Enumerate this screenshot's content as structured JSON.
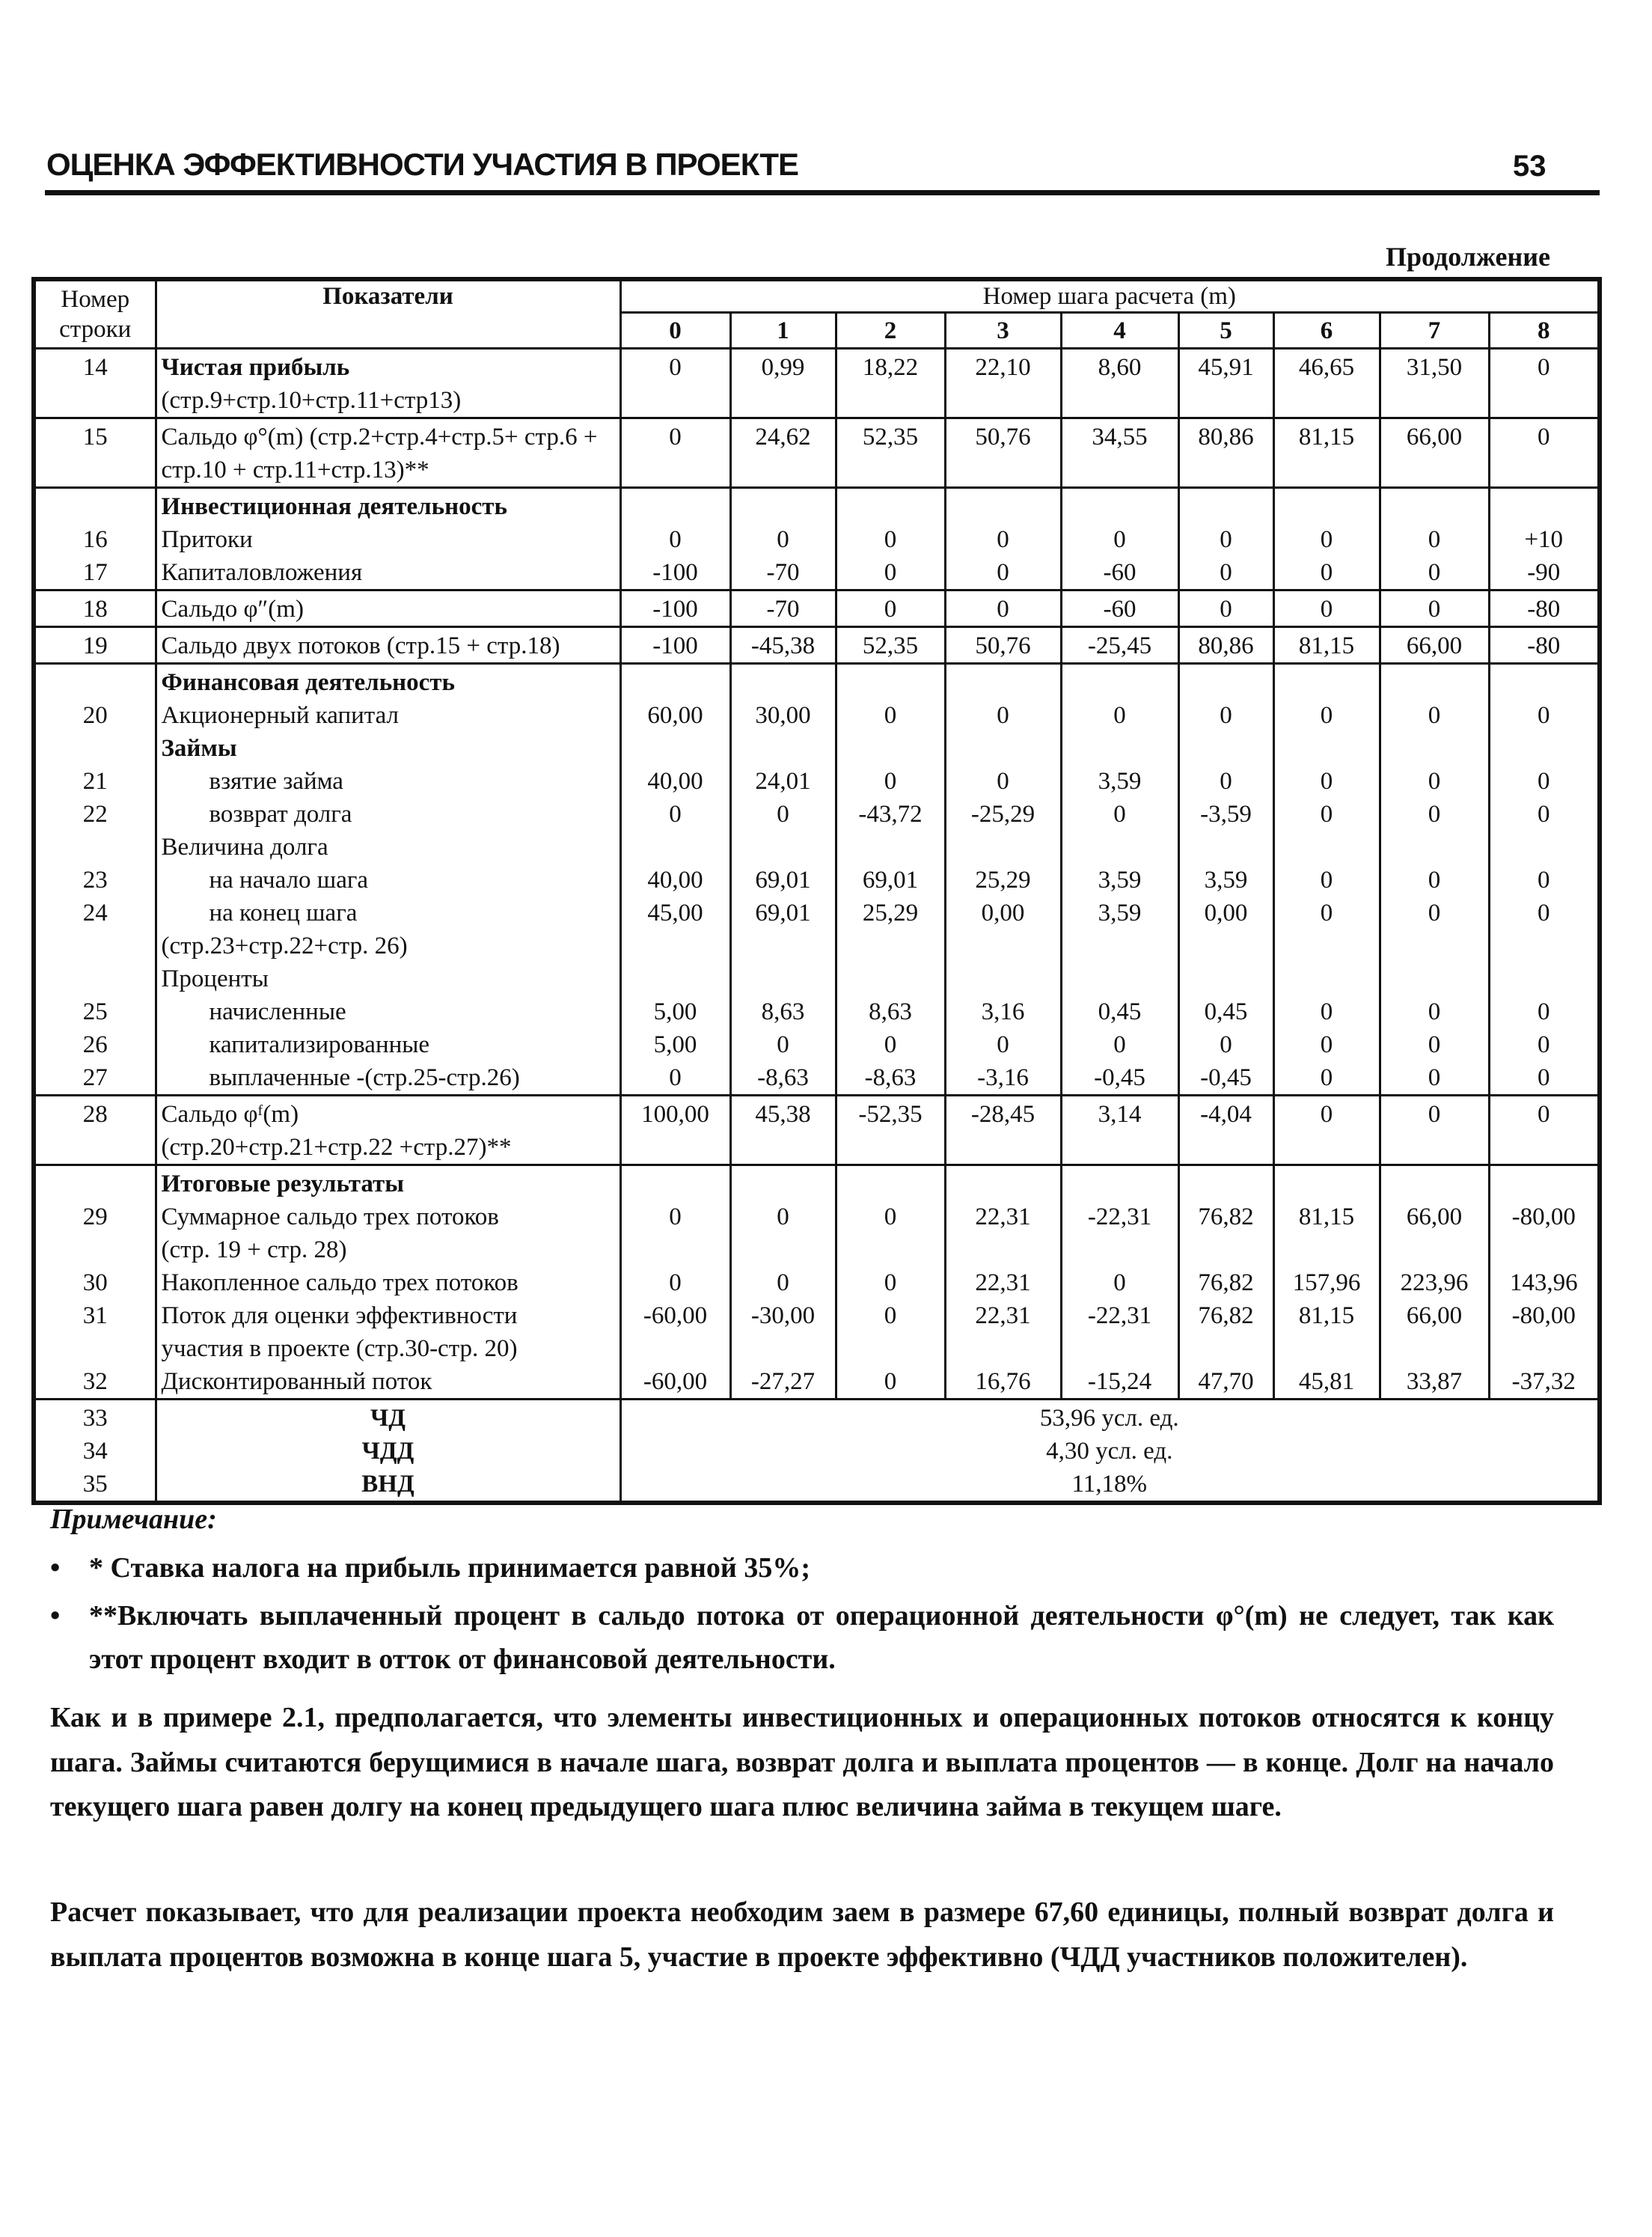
{
  "header": {
    "title": "ОЦЕНКА ЭФФЕКТИВНОСТИ УЧАСТИЯ В ПРОЕКТЕ",
    "page": "53"
  },
  "continuation": "Продолжение",
  "table": {
    "col_row": "Номер строки",
    "col_row_lines": [
      "Номер",
      "строки"
    ],
    "col_indicator": "Показатели",
    "col_steps": "Номер шага расчета (m)",
    "steps": [
      "0",
      "1",
      "2",
      "3",
      "4",
      "5",
      "6",
      "7",
      "8"
    ],
    "blocks": [
      {
        "lines": [
          {
            "num": "14",
            "label": "Чистая прибыль",
            "bold": true,
            "values": [
              "0",
              "0,99",
              "18,22",
              "22,10",
              "8,60",
              "45,91",
              "46,65",
              "31,50",
              "0"
            ]
          },
          {
            "label": "(стр.9+стр.10+стр.11+стр13)"
          }
        ]
      },
      {
        "lines": [
          {
            "num": "15",
            "label": "Сальдо φ°(m) (стр.2+стр.4+стр.5+ стр.6 +",
            "values": [
              "0",
              "24,62",
              "52,35",
              "50,76",
              "34,55",
              "80,86",
              "81,15",
              "66,00",
              "0"
            ]
          },
          {
            "label": "стр.10 + стр.11+стр.13)**"
          }
        ]
      },
      {
        "lines": [
          {
            "label": "Инвестиционная деятельность",
            "bold": true
          },
          {
            "num": "16",
            "label": "Притоки",
            "values": [
              "0",
              "0",
              "0",
              "0",
              "0",
              "0",
              "0",
              "0",
              "+10"
            ]
          },
          {
            "num": "17",
            "label": "Капиталовложения",
            "values": [
              "-100",
              "-70",
              "0",
              "0",
              "-60",
              "0",
              "0",
              "0",
              "-90"
            ]
          }
        ]
      },
      {
        "lines": [
          {
            "num": "18",
            "label": "Сальдо φ″(m)",
            "values": [
              "-100",
              "-70",
              "0",
              "0",
              "-60",
              "0",
              "0",
              "0",
              "-80"
            ]
          }
        ]
      },
      {
        "lines": [
          {
            "num": "19",
            "label": "Сальдо двух потоков (стр.15 + стр.18)",
            "values": [
              "-100",
              "-45,38",
              "52,35",
              "50,76",
              "-25,45",
              "80,86",
              "81,15",
              "66,00",
              "-80"
            ]
          }
        ]
      },
      {
        "lines": [
          {
            "label": "Финансовая деятельность",
            "bold": true
          },
          {
            "num": "20",
            "label": "Акционерный капитал",
            "values": [
              "60,00",
              "30,00",
              "0",
              "0",
              "0",
              "0",
              "0",
              "0",
              "0"
            ]
          },
          {
            "label": "Займы",
            "bold": true
          },
          {
            "num": "21",
            "label": "взятие займа",
            "indent": true,
            "values": [
              "40,00",
              "24,01",
              "0",
              "0",
              "3,59",
              "0",
              "0",
              "0",
              "0"
            ]
          },
          {
            "num": "22",
            "label": "возврат долга",
            "indent": true,
            "values": [
              "0",
              "0",
              "-43,72",
              "-25,29",
              "0",
              "-3,59",
              "0",
              "0",
              "0"
            ]
          },
          {
            "label": "Величина долга"
          },
          {
            "num": "23",
            "label": "на начало шага",
            "indent": true,
            "values": [
              "40,00",
              "69,01",
              "69,01",
              "25,29",
              "3,59",
              "3,59",
              "0",
              "0",
              "0"
            ]
          },
          {
            "num": "24",
            "label": "на конец шага",
            "indent": true,
            "values": [
              "45,00",
              "69,01",
              "25,29",
              "0,00",
              "3,59",
              "0,00",
              "0",
              "0",
              "0"
            ]
          },
          {
            "label": "(стр.23+стр.22+стр. 26)"
          },
          {
            "label": "Проценты"
          },
          {
            "num": "25",
            "label": "начисленные",
            "indent": true,
            "values": [
              "5,00",
              "8,63",
              "8,63",
              "3,16",
              "0,45",
              "0,45",
              "0",
              "0",
              "0"
            ]
          },
          {
            "num": "26",
            "label": "капитализированные",
            "indent": true,
            "values": [
              "5,00",
              "0",
              "0",
              "0",
              "0",
              "0",
              "0",
              "0",
              "0"
            ]
          },
          {
            "num": "27",
            "label": "выплаченные -(стр.25-стр.26)",
            "indent": true,
            "values": [
              "0",
              "-8,63",
              "-8,63",
              "-3,16",
              "-0,45",
              "-0,45",
              "0",
              "0",
              "0"
            ]
          }
        ]
      },
      {
        "lines": [
          {
            "num": "28",
            "label": "Сальдо φᶠ(m)",
            "values": [
              "100,00",
              "45,38",
              "-52,35",
              "-28,45",
              "3,14",
              "-4,04",
              "0",
              "0",
              "0"
            ]
          },
          {
            "label": "(стр.20+стр.21+стр.22 +стр.27)**"
          }
        ]
      },
      {
        "lines": [
          {
            "label": "Итоговые результаты",
            "bold": true
          },
          {
            "num": "29",
            "label": "Суммарное сальдо трех потоков",
            "values": [
              "0",
              "0",
              "0",
              "22,31",
              "-22,31",
              "76,82",
              "81,15",
              "66,00",
              "-80,00"
            ]
          },
          {
            "label": "(стр. 19 + стр. 28)"
          },
          {
            "num": "30",
            "label": "Накопленное сальдо трех потоков",
            "values": [
              "0",
              "0",
              "0",
              "22,31",
              "0",
              "76,82",
              "157,96",
              "223,96",
              "143,96"
            ]
          },
          {
            "num": "31",
            "label": "Поток для оценки эффективности",
            "values": [
              "-60,00",
              "-30,00",
              "0",
              "22,31",
              "-22,31",
              "76,82",
              "81,15",
              "66,00",
              "-80,00"
            ]
          },
          {
            "label": "участия в проекте (стр.30-стр. 20)"
          },
          {
            "num": "32",
            "label": "Дисконтированный поток",
            "values": [
              "-60,00",
              "-27,27",
              "0",
              "16,76",
              "-15,24",
              "47,70",
              "45,81",
              "33,87",
              "-37,32"
            ]
          }
        ]
      }
    ],
    "summary": [
      {
        "num": "33",
        "label": "ЧД",
        "value": "53,96 усл. ед."
      },
      {
        "num": "34",
        "label": "ЧДД",
        "value": "4,30 усл. ед."
      },
      {
        "num": "35",
        "label": "ВНД",
        "value": "11,18%"
      }
    ]
  },
  "notes": {
    "heading": "Примечание:",
    "items": [
      "* Ставка налога на прибыль принимается равной 35%;",
      "**Включать выплаченный процент в сальдо потока от операционной деятельности φ°(m) не следует, так как этот процент входит в отток от финансовой деятельности."
    ]
  },
  "paragraphs": [
    "Как и в примере 2.1, предполагается, что элементы инвестиционных и операционных потоков относятся к концу шага. Займы считаются берущимися в начале шага, возврат долга и выплата процентов — в конце. Долг на начало текущего шага равен долгу на конец предыдущего шага плюс величина займа в текущем шаге.",
    "Расчет показывает, что для реализации проекта необходим заем в размере 67,60 единицы, полный возврат долга и выплата процентов возможна в конце шага 5, участие в проекте эффективно (ЧДД участников положителен)."
  ]
}
